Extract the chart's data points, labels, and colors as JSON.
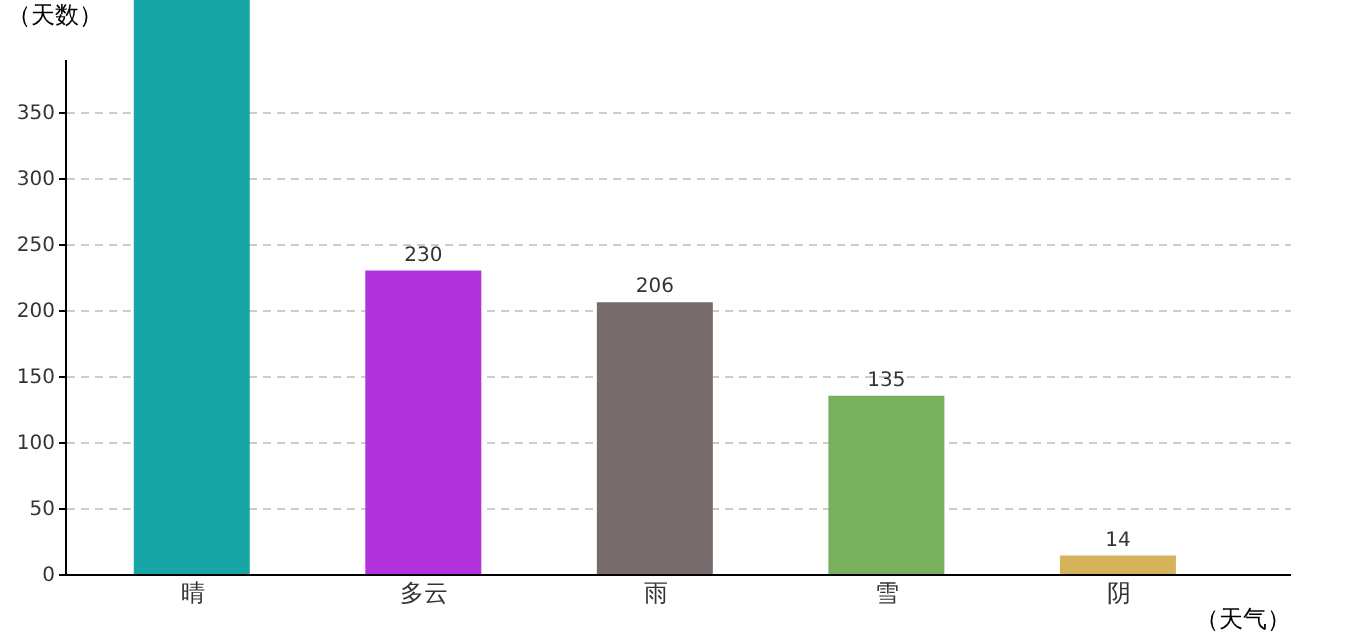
{
  "chart_data": {
    "type": "bar",
    "xlabel": "（天气）",
    "ylabel": "（天数）",
    "categories": [
      "晴",
      "多云",
      "雨",
      "雪",
      "阴"
    ],
    "values": [
      435,
      230,
      206,
      135,
      14
    ],
    "colors": [
      "#17a5a5",
      "#b233dd",
      "#786b6b",
      "#79b060",
      "#d4b35a"
    ],
    "value_labels": [
      null,
      "230",
      "206",
      "135",
      "14"
    ],
    "ylim": [
      0,
      435
    ],
    "yticks": [
      0,
      50,
      100,
      150,
      200,
      250,
      300,
      350
    ],
    "grid": "y",
    "legend": false
  }
}
